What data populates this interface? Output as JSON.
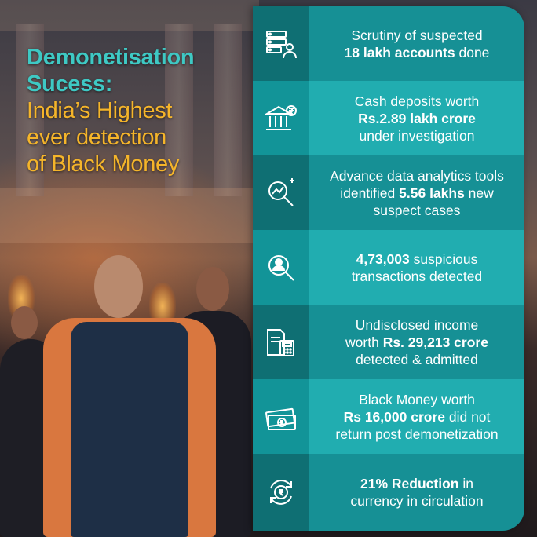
{
  "headline": {
    "line1a": "Demonetisation",
    "line1b": "Sucess:",
    "line2": [
      "India’s Highest",
      "ever detection",
      "of Black Money"
    ]
  },
  "colors": {
    "headline_accent": "#3ec9c4",
    "headline_secondary": "#f5b52a",
    "panel_dark": "#169095",
    "panel_light": "#21adb0"
  },
  "facts": [
    {
      "icon": "server-user-icon",
      "line1": "Scrutiny of suspected",
      "bold": "18 lakh accounts",
      "after": " done"
    },
    {
      "icon": "bank-rupee-icon",
      "line1": "Cash deposits worth",
      "bold": "Rs.2.89 lakh crore",
      "after": "under investigation"
    },
    {
      "icon": "analytics-magnifier-icon",
      "line1": "Advance data analytics tools",
      "pre": "identified ",
      "bold": "5.56 lakhs",
      "after": " new",
      "line3": "suspect cases"
    },
    {
      "icon": "user-magnifier-icon",
      "bold": "4,73,003",
      "after": " suspicious",
      "line2": "transactions detected"
    },
    {
      "icon": "documents-calculator-icon",
      "line1": "Undisclosed income",
      "pre": "worth ",
      "bold": "Rs. 29,213 crore",
      "line3": "detected & admitted"
    },
    {
      "icon": "banknotes-icon",
      "line1": "Black Money worth",
      "bold": "Rs 16,000 crore",
      "after": " did not",
      "line3": "return post demonetization"
    },
    {
      "icon": "rupee-cycle-icon",
      "bold": "21% Reduction",
      "after": " in",
      "line2": "currency in circulation"
    }
  ]
}
